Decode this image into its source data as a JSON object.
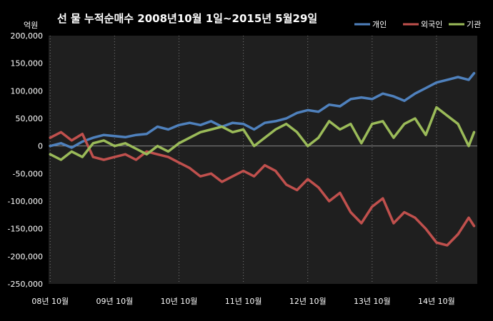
{
  "chart_data": {
    "type": "line",
    "title": "선 물  누적순매수 2008년10월 1일~2015년 5월29일",
    "ylabel": "억원",
    "xlabel": "",
    "ylim": [
      -250000,
      200000
    ],
    "yticks": [
      200000,
      150000,
      100000,
      50000,
      0,
      -50000,
      -100000,
      -150000,
      -200000,
      -250000
    ],
    "ytick_labels": [
      "200,000",
      "150,000",
      "100,000",
      "50,000",
      "0",
      "-50,000",
      "-100,000",
      "-150,000",
      "-200,000",
      "-250,000"
    ],
    "x_labels": [
      {
        "label": "08년 10월",
        "date": "2008-10"
      },
      {
        "label": "09년 10월",
        "date": "2009-10"
      },
      {
        "label": "10년 10월",
        "date": "2010-10"
      },
      {
        "label": "11년 10월",
        "date": "2011-10"
      },
      {
        "label": "12년 10월",
        "date": "2012-10"
      },
      {
        "label": "13년 10월",
        "date": "2013-10"
      },
      {
        "label": "14년 10월",
        "date": "2014-10"
      }
    ],
    "x_range": [
      "2008-10",
      "2015-05"
    ],
    "grid": "vertical dashed lines at each October",
    "legend_position": "top-right",
    "series": [
      {
        "name": "개인",
        "color": "#4f81bd",
        "x": [
          "2008-10",
          "2008-12",
          "2009-02",
          "2009-04",
          "2009-06",
          "2009-08",
          "2009-10",
          "2009-12",
          "2010-02",
          "2010-04",
          "2010-06",
          "2010-08",
          "2010-10",
          "2010-12",
          "2011-02",
          "2011-04",
          "2011-06",
          "2011-08",
          "2011-10",
          "2011-12",
          "2012-02",
          "2012-04",
          "2012-06",
          "2012-08",
          "2012-10",
          "2012-12",
          "2013-02",
          "2013-04",
          "2013-06",
          "2013-08",
          "2013-10",
          "2013-12",
          "2014-02",
          "2014-04",
          "2014-06",
          "2014-08",
          "2014-10",
          "2014-12",
          "2015-02",
          "2015-04",
          "2015-05"
        ],
        "values": [
          0,
          5000,
          -3000,
          8000,
          15000,
          20000,
          18000,
          16000,
          20000,
          22000,
          35000,
          30000,
          38000,
          42000,
          38000,
          45000,
          35000,
          42000,
          40000,
          30000,
          42000,
          45000,
          50000,
          60000,
          65000,
          62000,
          75000,
          72000,
          85000,
          88000,
          85000,
          95000,
          90000,
          82000,
          95000,
          105000,
          115000,
          120000,
          125000,
          120000,
          132000
        ]
      },
      {
        "name": "외국인",
        "color": "#c0504d",
        "x": [
          "2008-10",
          "2008-12",
          "2009-02",
          "2009-04",
          "2009-06",
          "2009-08",
          "2009-10",
          "2009-12",
          "2010-02",
          "2010-04",
          "2010-06",
          "2010-08",
          "2010-10",
          "2010-12",
          "2011-02",
          "2011-04",
          "2011-06",
          "2011-08",
          "2011-10",
          "2011-12",
          "2012-02",
          "2012-04",
          "2012-06",
          "2012-08",
          "2012-10",
          "2012-12",
          "2013-02",
          "2013-04",
          "2013-06",
          "2013-08",
          "2013-10",
          "2013-12",
          "2014-02",
          "2014-04",
          "2014-06",
          "2014-08",
          "2014-10",
          "2014-12",
          "2015-02",
          "2015-04",
          "2015-05"
        ],
        "values": [
          15000,
          25000,
          10000,
          22000,
          -20000,
          -25000,
          -20000,
          -15000,
          -25000,
          -10000,
          -15000,
          -20000,
          -30000,
          -40000,
          -55000,
          -50000,
          -65000,
          -55000,
          -45000,
          -55000,
          -35000,
          -45000,
          -70000,
          -80000,
          -60000,
          -75000,
          -100000,
          -85000,
          -120000,
          -140000,
          -110000,
          -95000,
          -140000,
          -120000,
          -130000,
          -150000,
          -175000,
          -180000,
          -160000,
          -130000,
          -145000
        ]
      },
      {
        "name": "기관",
        "color": "#9bbb59",
        "x": [
          "2008-10",
          "2008-12",
          "2009-02",
          "2009-04",
          "2009-06",
          "2009-08",
          "2009-10",
          "2009-12",
          "2010-02",
          "2010-04",
          "2010-06",
          "2010-08",
          "2010-10",
          "2010-12",
          "2011-02",
          "2011-04",
          "2011-06",
          "2011-08",
          "2011-10",
          "2011-12",
          "2012-02",
          "2012-04",
          "2012-06",
          "2012-08",
          "2012-10",
          "2012-12",
          "2013-02",
          "2013-04",
          "2013-06",
          "2013-08",
          "2013-10",
          "2013-12",
          "2014-02",
          "2014-04",
          "2014-06",
          "2014-08",
          "2014-10",
          "2014-12",
          "2015-02",
          "2015-04",
          "2015-05"
        ],
        "values": [
          -15000,
          -25000,
          -10000,
          -20000,
          5000,
          10000,
          0,
          5000,
          -5000,
          -15000,
          0,
          -10000,
          5000,
          15000,
          25000,
          30000,
          35000,
          25000,
          30000,
          0,
          15000,
          30000,
          40000,
          25000,
          0,
          15000,
          45000,
          30000,
          40000,
          5000,
          40000,
          45000,
          15000,
          40000,
          50000,
          20000,
          70000,
          55000,
          40000,
          0,
          25000
        ]
      }
    ]
  }
}
